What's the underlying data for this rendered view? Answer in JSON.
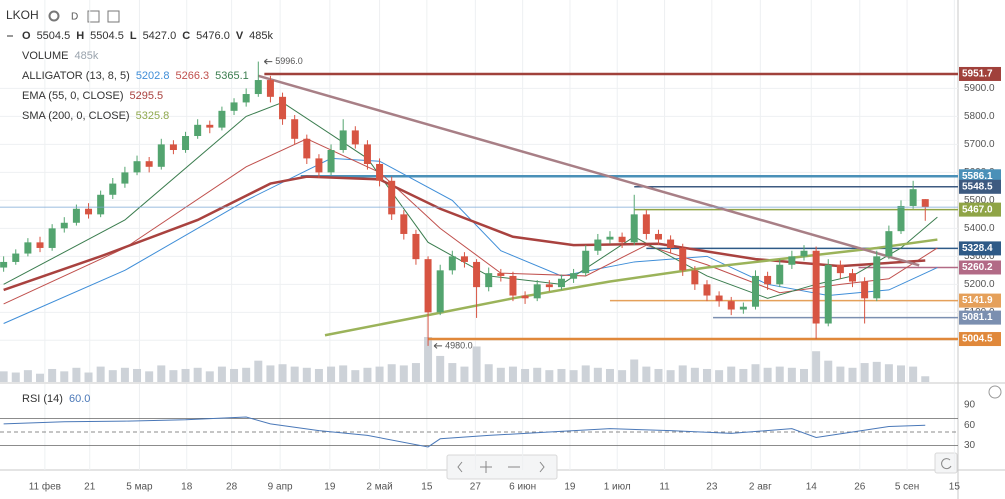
{
  "header": {
    "symbol": "LKOH",
    "interval": "D",
    "ohlc": [
      {
        "key": "O",
        "value": "5504.5"
      },
      {
        "key": "H",
        "value": "5504.5"
      },
      {
        "key": "L",
        "value": "5427.0"
      },
      {
        "key": "C",
        "value": "5476.0"
      },
      {
        "key": "V",
        "value": "485k"
      }
    ],
    "indicators": [
      {
        "name": "VOLUME",
        "values": [
          "485k"
        ],
        "colors": [
          "#9aa3ad"
        ]
      },
      {
        "name": "ALLIGATOR (13, 8, 5)",
        "values": [
          "5202.8",
          "5266.3",
          "5365.1"
        ],
        "colors": [
          "#3f8ed8",
          "#c0504d",
          "#3b7d4f"
        ]
      },
      {
        "name": "EMA (55, 0, CLOSE)",
        "values": [
          "5295.5"
        ],
        "colors": [
          "#a9423f"
        ]
      },
      {
        "name": "SMA (200, 0, CLOSE)",
        "values": [
          "5325.8"
        ],
        "colors": [
          "#8fa84e"
        ]
      }
    ],
    "rsi": {
      "name": "RSI (14)",
      "value": "60.0",
      "color": "#4a78b8"
    }
  },
  "chart_data": {
    "type": "candlestick",
    "up_color": "#53a46f",
    "down_color": "#d75442",
    "volume_color": "#cdd2d8",
    "grid": true,
    "open": [
      5260,
      5280,
      5310,
      5350,
      5330,
      5400,
      5420,
      5470,
      5450,
      5520,
      5560,
      5600,
      5640,
      5620,
      5700,
      5680,
      5730,
      5770,
      5760,
      5820,
      5850,
      5880,
      5930,
      5870,
      5790,
      5720,
      5650,
      5600,
      5680,
      5750,
      5700,
      5630,
      5570,
      5450,
      5380,
      5290,
      5100,
      5250,
      5300,
      5280,
      5190,
      5240,
      5230,
      5160,
      5150,
      5200,
      5190,
      5220,
      5240,
      5320,
      5360,
      5370,
      5350,
      5450,
      5380,
      5360,
      5330,
      5250,
      5200,
      5160,
      5140,
      5110,
      5120,
      5230,
      5200,
      5270,
      5300,
      5320,
      5060,
      5270,
      5240,
      5210,
      5150,
      5300,
      5390,
      5480,
      5504.5
    ],
    "high": [
      5300,
      5325,
      5365,
      5370,
      5415,
      5440,
      5485,
      5490,
      5535,
      5580,
      5620,
      5660,
      5655,
      5720,
      5715,
      5745,
      5790,
      5785,
      5835,
      5865,
      5900,
      5996,
      5945,
      5885,
      5805,
      5735,
      5665,
      5700,
      5790,
      5765,
      5715,
      5650,
      5585,
      5465,
      5395,
      5300,
      5270,
      5320,
      5315,
      5290,
      5260,
      5255,
      5245,
      5175,
      5215,
      5215,
      5235,
      5255,
      5340,
      5380,
      5390,
      5385,
      5520,
      5465,
      5395,
      5375,
      5345,
      5265,
      5215,
      5175,
      5155,
      5135,
      5250,
      5245,
      5290,
      5320,
      5340,
      5335,
      5290,
      5285,
      5255,
      5225,
      5320,
      5410,
      5500,
      5570,
      5504.5
    ],
    "low": [
      5245,
      5270,
      5300,
      5315,
      5320,
      5385,
      5410,
      5435,
      5440,
      5505,
      5545,
      5590,
      5600,
      5610,
      5665,
      5670,
      5720,
      5740,
      5750,
      5805,
      5835,
      5870,
      5850,
      5770,
      5700,
      5630,
      5580,
      5590,
      5670,
      5685,
      5610,
      5550,
      5430,
      5360,
      5270,
      4980,
      5090,
      5235,
      5260,
      5080,
      5175,
      5210,
      5140,
      5130,
      5140,
      5175,
      5180,
      5205,
      5230,
      5305,
      5345,
      5330,
      5340,
      5360,
      5340,
      5310,
      5230,
      5180,
      5140,
      5120,
      5090,
      5095,
      5110,
      5180,
      5190,
      5255,
      5285,
      5004.5,
      5050,
      5220,
      5190,
      5060,
      5140,
      5290,
      5380,
      5470,
      5427
    ],
    "close": [
      5280,
      5310,
      5350,
      5330,
      5400,
      5420,
      5470,
      5450,
      5520,
      5560,
      5600,
      5640,
      5620,
      5700,
      5680,
      5730,
      5770,
      5760,
      5820,
      5850,
      5880,
      5930,
      5870,
      5790,
      5720,
      5650,
      5600,
      5680,
      5750,
      5700,
      5630,
      5570,
      5450,
      5380,
      5290,
      5100,
      5250,
      5300,
      5280,
      5190,
      5240,
      5230,
      5160,
      5150,
      5200,
      5190,
      5220,
      5240,
      5320,
      5360,
      5370,
      5350,
      5450,
      5380,
      5360,
      5330,
      5250,
      5200,
      5160,
      5140,
      5110,
      5120,
      5230,
      5200,
      5270,
      5300,
      5320,
      5060,
      5270,
      5240,
      5210,
      5150,
      5300,
      5390,
      5480,
      5540,
      5476
    ],
    "volume": [
      900,
      800,
      1000,
      700,
      1100,
      900,
      1200,
      800,
      1300,
      1000,
      1200,
      1100,
      900,
      1400,
      1000,
      1100,
      1200,
      900,
      1300,
      1100,
      1200,
      1800,
      1400,
      1500,
      1300,
      1200,
      1100,
      1300,
      1400,
      1000,
      1200,
      1300,
      1500,
      1400,
      1600,
      3800,
      2200,
      1600,
      1300,
      3000,
      1500,
      1200,
      1300,
      1100,
      1200,
      1000,
      1100,
      1000,
      1400,
      1200,
      1100,
      1000,
      1900,
      1300,
      1100,
      1000,
      1400,
      1200,
      1100,
      1000,
      1300,
      1100,
      1500,
      1200,
      1300,
      1200,
      1100,
      2600,
      1800,
      1300,
      1200,
      1600,
      1700,
      1500,
      1400,
      1300,
      485
    ],
    "xlim": [
      -0.3,
      78.7
    ],
    "ylim": [
      4851,
      6216
    ],
    "yticks": [
      {
        "value": 5900,
        "label": "5900.0"
      },
      {
        "value": 5800,
        "label": "5800.0"
      },
      {
        "value": 5700,
        "label": "5700.0"
      },
      {
        "value": 5600,
        "label": "5600.0"
      },
      {
        "value": 5500,
        "label": "5500.0"
      },
      {
        "value": 5400,
        "label": "5400.0"
      },
      {
        "value": 5300,
        "label": "5300.0"
      },
      {
        "value": 5200,
        "label": "5200.0"
      },
      {
        "value": 5100,
        "label": "5100.0"
      },
      {
        "value": 5000,
        "label": "5000.0"
      }
    ],
    "xticks": [
      {
        "value": 3.4,
        "label": "11 фев"
      },
      {
        "value": 7.1,
        "label": "21"
      },
      {
        "value": 11.2,
        "label": "5 мар"
      },
      {
        "value": 15.1,
        "label": "18"
      },
      {
        "value": 18.8,
        "label": "28"
      },
      {
        "value": 22.8,
        "label": "9 апр"
      },
      {
        "value": 26.9,
        "label": "19"
      },
      {
        "value": 31,
        "label": "2 май"
      },
      {
        "value": 34.9,
        "label": "15"
      },
      {
        "value": 38.9,
        "label": "27"
      },
      {
        "value": 42.8,
        "label": "6 июн"
      },
      {
        "value": 46.7,
        "label": "19"
      },
      {
        "value": 50.6,
        "label": "1 июл"
      },
      {
        "value": 54.5,
        "label": "11"
      },
      {
        "value": 58.4,
        "label": "23"
      },
      {
        "value": 62.4,
        "label": "2 авг"
      },
      {
        "value": 66.6,
        "label": "14"
      },
      {
        "value": 70.6,
        "label": "26"
      },
      {
        "value": 74.5,
        "label": "5 сен"
      },
      {
        "value": 78.4,
        "label": "15"
      }
    ],
    "overlays": [
      {
        "color": "#3f8ed8",
        "width": 1,
        "x": [
          0,
          10,
          20,
          27,
          31,
          37,
          41,
          46,
          52,
          58,
          63,
          68,
          73,
          77
        ],
        "values": [
          5060,
          5250,
          5500,
          5650,
          5640,
          5500,
          5320,
          5230,
          5280,
          5300,
          5200,
          5160,
          5180,
          5260
        ]
      },
      {
        "color": "#c0504d",
        "width": 1,
        "x": [
          0,
          10,
          20,
          25,
          31,
          36,
          41,
          48,
          53,
          58,
          64,
          69,
          73,
          77
        ],
        "values": [
          5130,
          5330,
          5620,
          5720,
          5600,
          5400,
          5240,
          5230,
          5340,
          5270,
          5170,
          5200,
          5220,
          5330
        ]
      },
      {
        "color": "#3b7d4f",
        "width": 1,
        "x": [
          0,
          10,
          20,
          23,
          30,
          35,
          40,
          46,
          52,
          58,
          63,
          67,
          70,
          74,
          77
        ],
        "values": [
          5200,
          5430,
          5800,
          5850,
          5650,
          5350,
          5230,
          5200,
          5370,
          5230,
          5150,
          5200,
          5230,
          5330,
          5440
        ]
      },
      {
        "color": "#a9423f",
        "width": 2.5,
        "x": [
          0,
          8,
          16,
          22,
          25,
          31,
          36,
          42,
          47,
          54,
          62,
          69,
          76
        ],
        "values": [
          5180,
          5300,
          5430,
          5560,
          5585,
          5575,
          5470,
          5370,
          5340,
          5345,
          5290,
          5265,
          5285
        ]
      },
      {
        "color": "#9bb35a",
        "width": 2.5,
        "x": [
          26.5,
          35,
          42,
          50,
          58,
          66,
          72,
          77
        ],
        "values": [
          5018,
          5090,
          5150,
          5210,
          5260,
          5300,
          5330,
          5360
        ]
      }
    ],
    "trendline": {
      "color": "#a87f86",
      "x": [
        21,
        75.5
      ],
      "values": [
        5945,
        5268
      ]
    },
    "levels": [
      {
        "value": 5951.7,
        "label": "5951.7",
        "color": "#a0413b",
        "from": 21.5
      },
      {
        "value": 5586.1,
        "label": "5586.1",
        "color": "#4a90b8",
        "from": 24.5
      },
      {
        "value": 5548.5,
        "label": "5548.5",
        "color": "#3d5a80",
        "from": 52
      },
      {
        "value": 5467,
        "label": "5467.0",
        "color": "#8fa446",
        "from": 52
      },
      {
        "value": 5328.4,
        "label": "5328.4",
        "color": "#2e5a87",
        "from": 53
      },
      {
        "value": 5260.2,
        "label": "5260.2",
        "color": "#b26a86",
        "from": 70.5
      },
      {
        "value": 5141.9,
        "label": "5141.9",
        "color": "#e5a05a",
        "from": 50
      },
      {
        "value": 5081.1,
        "label": "5081.1",
        "color": "#7b8fb0",
        "from": 58.5
      },
      {
        "value": 5004.5,
        "label": "5004.5",
        "color": "#e0883a",
        "from": 35
      }
    ],
    "annotations": [
      {
        "x": 21,
        "value": 5996,
        "label": "5996.0"
      },
      {
        "x": 35,
        "value": 4980,
        "label": "4980.0"
      }
    ],
    "rsi": {
      "color": "#4a78b8",
      "ylim": [
        0,
        100
      ],
      "yticks": [
        90,
        60,
        30
      ],
      "bands": [
        70,
        50,
        30
      ],
      "x": [
        0,
        5,
        10,
        15,
        20,
        22,
        26,
        30,
        35,
        36,
        40,
        45,
        50,
        55,
        60,
        65,
        67,
        70,
        73,
        76
      ],
      "values": [
        62,
        65,
        66,
        68,
        72,
        62,
        52,
        45,
        28,
        40,
        45,
        50,
        55,
        52,
        48,
        55,
        42,
        50,
        58,
        60
      ]
    }
  }
}
